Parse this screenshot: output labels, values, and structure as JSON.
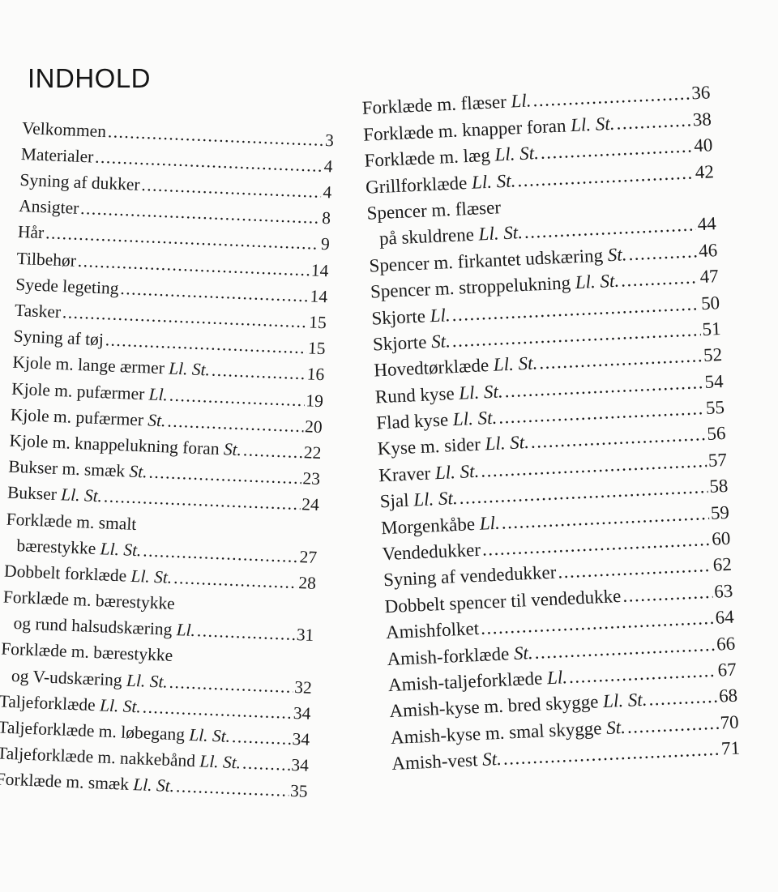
{
  "title": "INDHOLD",
  "left": [
    {
      "text": "Velkommen",
      "size": "",
      "page": "3"
    },
    {
      "text": "Materialer",
      "size": "",
      "page": "4"
    },
    {
      "text": "Syning af dukker",
      "size": "",
      "page": "4"
    },
    {
      "text": "Ansigter",
      "size": "",
      "page": "8"
    },
    {
      "text": "Hår",
      "size": "",
      "page": "9"
    },
    {
      "text": "Tilbehør",
      "size": "",
      "page": "14"
    },
    {
      "text": "Syede legeting",
      "size": "",
      "page": "14"
    },
    {
      "text": "Tasker",
      "size": "",
      "page": "15"
    },
    {
      "text": "Syning af tøj",
      "size": "",
      "page": "15"
    },
    {
      "text": "Kjole m. lange ærmer",
      "size": "Ll. St.",
      "page": "16"
    },
    {
      "text": "Kjole m. pufærmer",
      "size": "Ll.",
      "page": "19"
    },
    {
      "text": "Kjole m. pufærmer",
      "size": "St.",
      "page": "20"
    },
    {
      "text": "Kjole m. knappelukning foran",
      "size": "St.",
      "page": "22"
    },
    {
      "text": "Bukser m. smæk",
      "size": "St.",
      "page": "23"
    },
    {
      "text": "Bukser",
      "size": "Ll. St.",
      "page": "24"
    },
    {
      "text": "Forklæde m. smalt",
      "cont": "bærestykke",
      "size": "Ll. St.",
      "page": "27"
    },
    {
      "text": "Dobbelt forklæde",
      "size": "Ll. St.",
      "page": "28"
    },
    {
      "text": "Forklæde m. bærestykke",
      "cont": "og rund halsudskæring",
      "size": "Ll.",
      "page": "31"
    },
    {
      "text": "Forklæde m. bærestykke",
      "cont": "og V-udskæring",
      "size": "Ll. St.",
      "page": "32"
    },
    {
      "text": "Taljeforklæde",
      "size": "Ll. St.",
      "page": "34"
    },
    {
      "text": "Taljeforklæde m. løbegang",
      "size": "Ll. St.",
      "page": "34"
    },
    {
      "text": "Taljeforklæde m. nakkebånd",
      "size": "Ll. St.",
      "page": "34"
    },
    {
      "text": "Forklæde m. smæk",
      "size": "Ll. St.",
      "page": "35"
    }
  ],
  "right": [
    {
      "text": "Forklæde m. flæser",
      "size": "Ll.",
      "page": "36"
    },
    {
      "text": "Forklæde m. knapper foran",
      "size": "Ll. St.",
      "page": "38"
    },
    {
      "text": "Forklæde m. læg",
      "size": "Ll. St.",
      "page": "40"
    },
    {
      "text": "Grillforklæde",
      "size": "Ll. St.",
      "page": "42"
    },
    {
      "text": "Spencer m. flæser",
      "cont": "på skuldrene",
      "size": "Ll. St.",
      "page": "44"
    },
    {
      "text": "Spencer m. firkantet udskæring",
      "size": "St.",
      "page": "46"
    },
    {
      "text": "Spencer m. stroppelukning",
      "size": "Ll. St.",
      "page": "47"
    },
    {
      "text": "Skjorte",
      "size": "Ll.",
      "page": "50"
    },
    {
      "text": "Skjorte",
      "size": "St.",
      "page": "51"
    },
    {
      "text": "Hovedtørklæde",
      "size": "Ll. St.",
      "page": "52"
    },
    {
      "text": "Rund kyse",
      "size": "Ll. St.",
      "page": "54"
    },
    {
      "text": "Flad kyse",
      "size": "Ll. St.",
      "page": "55"
    },
    {
      "text": "Kyse m. sider",
      "size": "Ll. St.",
      "page": "56"
    },
    {
      "text": "Kraver",
      "size": "Ll. St.",
      "page": "57"
    },
    {
      "text": "Sjal",
      "size": "Ll. St.",
      "page": "58"
    },
    {
      "text": "Morgenkåbe",
      "size": "Ll.",
      "page": "59"
    },
    {
      "text": "Vendedukker",
      "size": "",
      "page": "60"
    },
    {
      "text": "Syning af vendedukker",
      "size": "",
      "page": "62"
    },
    {
      "text": "Dobbelt spencer til vendedukke",
      "size": "",
      "page": "63"
    },
    {
      "text": "Amishfolket",
      "size": "",
      "page": "64"
    },
    {
      "text": "Amish-forklæde",
      "size": "St.",
      "page": "66"
    },
    {
      "text": "Amish-taljeforklæde",
      "size": "Ll.",
      "page": "67"
    },
    {
      "text": "Amish-kyse m. bred skygge",
      "size": "Ll. St.",
      "page": "68"
    },
    {
      "text": "Amish-kyse m. smal skygge",
      "size": "St.",
      "page": "70"
    },
    {
      "text": "Amish-vest",
      "size": "St.",
      "page": "71"
    }
  ]
}
